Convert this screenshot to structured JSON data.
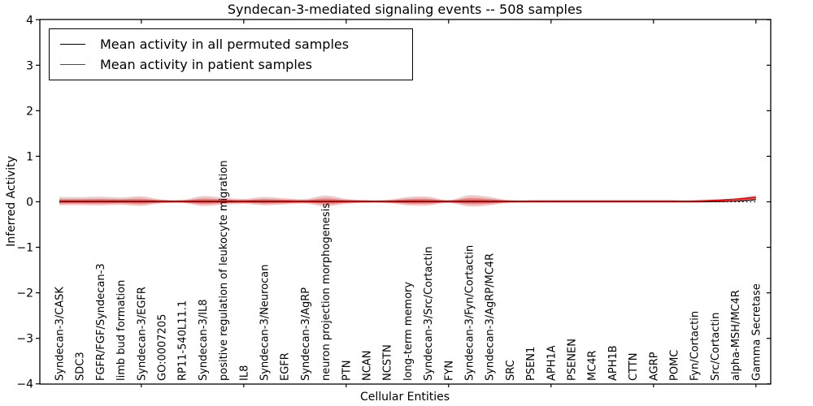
{
  "figure": {
    "title": "Syndecan-3-mediated signaling events -- 508 samples",
    "xlabel": "Cellular Entities",
    "ylabel": "Inferred Activity"
  },
  "legend": {
    "entries": [
      {
        "label": "Mean activity in all permuted samples",
        "color": "#000000"
      },
      {
        "label": "Mean activity in patient samples",
        "color": "#ff0000"
      }
    ]
  },
  "chart_data": {
    "type": "line",
    "title": "Syndecan-3-mediated signaling events -- 508 samples",
    "xlabel": "Cellular Entities",
    "ylabel": "Inferred Activity",
    "ylim": [
      -4,
      4
    ],
    "yticks": [
      4,
      3,
      2,
      1,
      0,
      -1,
      -2,
      -3,
      -4
    ],
    "ytick_labels": [
      "4",
      "3",
      "2",
      "1",
      "0",
      "−1",
      "−2",
      "−3",
      "−4"
    ],
    "x_major_tick_every": 5,
    "grid": false,
    "legend_position": "upper left",
    "zero_line": {
      "y": 0,
      "style": "dotted",
      "color": "#000000"
    },
    "categories": [
      "Syndecan-3/CASK",
      "SDC3",
      "FGFR/FGF/Syndecan-3",
      "limb bud formation",
      "Syndecan-3/EGFR",
      "GO:0007205",
      "RP11-540L11.1",
      "Syndecan-3/IL8",
      "positive regulation of leukocyte migration",
      "IL8",
      "Syndecan-3/Neurocan",
      "EGFR",
      "Syndecan-3/AgRP",
      "neuron projection morphogenesis",
      "PTN",
      "NCAN",
      "NCSTN",
      "long-term memory",
      "Syndecan-3/Src/Cortactin",
      "FYN",
      "Syndecan-3/Fyn/Cortactin",
      "Syndecan-3/AgRP/MC4R",
      "SRC",
      "PSEN1",
      "APH1A",
      "PSENEN",
      "MC4R",
      "APH1B",
      "CTTN",
      "AGRP",
      "POMC",
      "Fyn/Cortactin",
      "Src/Cortactin",
      "alpha-MSH/MC4R",
      "Gamma Secretase"
    ],
    "series": [
      {
        "name": "Mean activity in all permuted samples",
        "color": "#000000",
        "style": "solid",
        "width": 1.2,
        "values": [
          0,
          0,
          0,
          0,
          0,
          0,
          0,
          0,
          0,
          0,
          0,
          0,
          0,
          0,
          0,
          0,
          0,
          0,
          0,
          0,
          0,
          0,
          0,
          0,
          0,
          0,
          0,
          0,
          0,
          0,
          0,
          0,
          0.003,
          0.015,
          0.045
        ]
      },
      {
        "name": "Mean activity in patient samples",
        "color": "#ff0000",
        "style": "solid",
        "width": 1.8,
        "values": [
          0.005,
          0.005,
          0.005,
          0.005,
          0.005,
          0.003,
          0.003,
          0.005,
          0.005,
          0.004,
          0.005,
          0.004,
          0.004,
          0.006,
          0.004,
          0.003,
          0.003,
          0.005,
          0.006,
          0.003,
          0.007,
          0.005,
          0.003,
          0.003,
          0.003,
          0.003,
          0.003,
          0.003,
          0.003,
          0.003,
          0.003,
          0.004,
          0.02,
          0.045,
          0.085
        ]
      }
    ],
    "band": {
      "name": "patient-sample activity spread",
      "color": "#cc3333",
      "outer_alpha": 0.28,
      "inner_alpha": 0.42,
      "inner_fraction": 0.55,
      "lower_fraction": 0.8,
      "half_widths": [
        0.1,
        0.095,
        0.105,
        0.09,
        0.115,
        0.045,
        0.035,
        0.12,
        0.085,
        0.06,
        0.1,
        0.075,
        0.055,
        0.13,
        0.06,
        0.025,
        0.035,
        0.1,
        0.105,
        0.03,
        0.135,
        0.1,
        0.025,
        0.018,
        0.015,
        0.015,
        0.015,
        0.015,
        0.015,
        0.015,
        0.015,
        0.015,
        0.02,
        0.03,
        0.06
      ]
    }
  }
}
